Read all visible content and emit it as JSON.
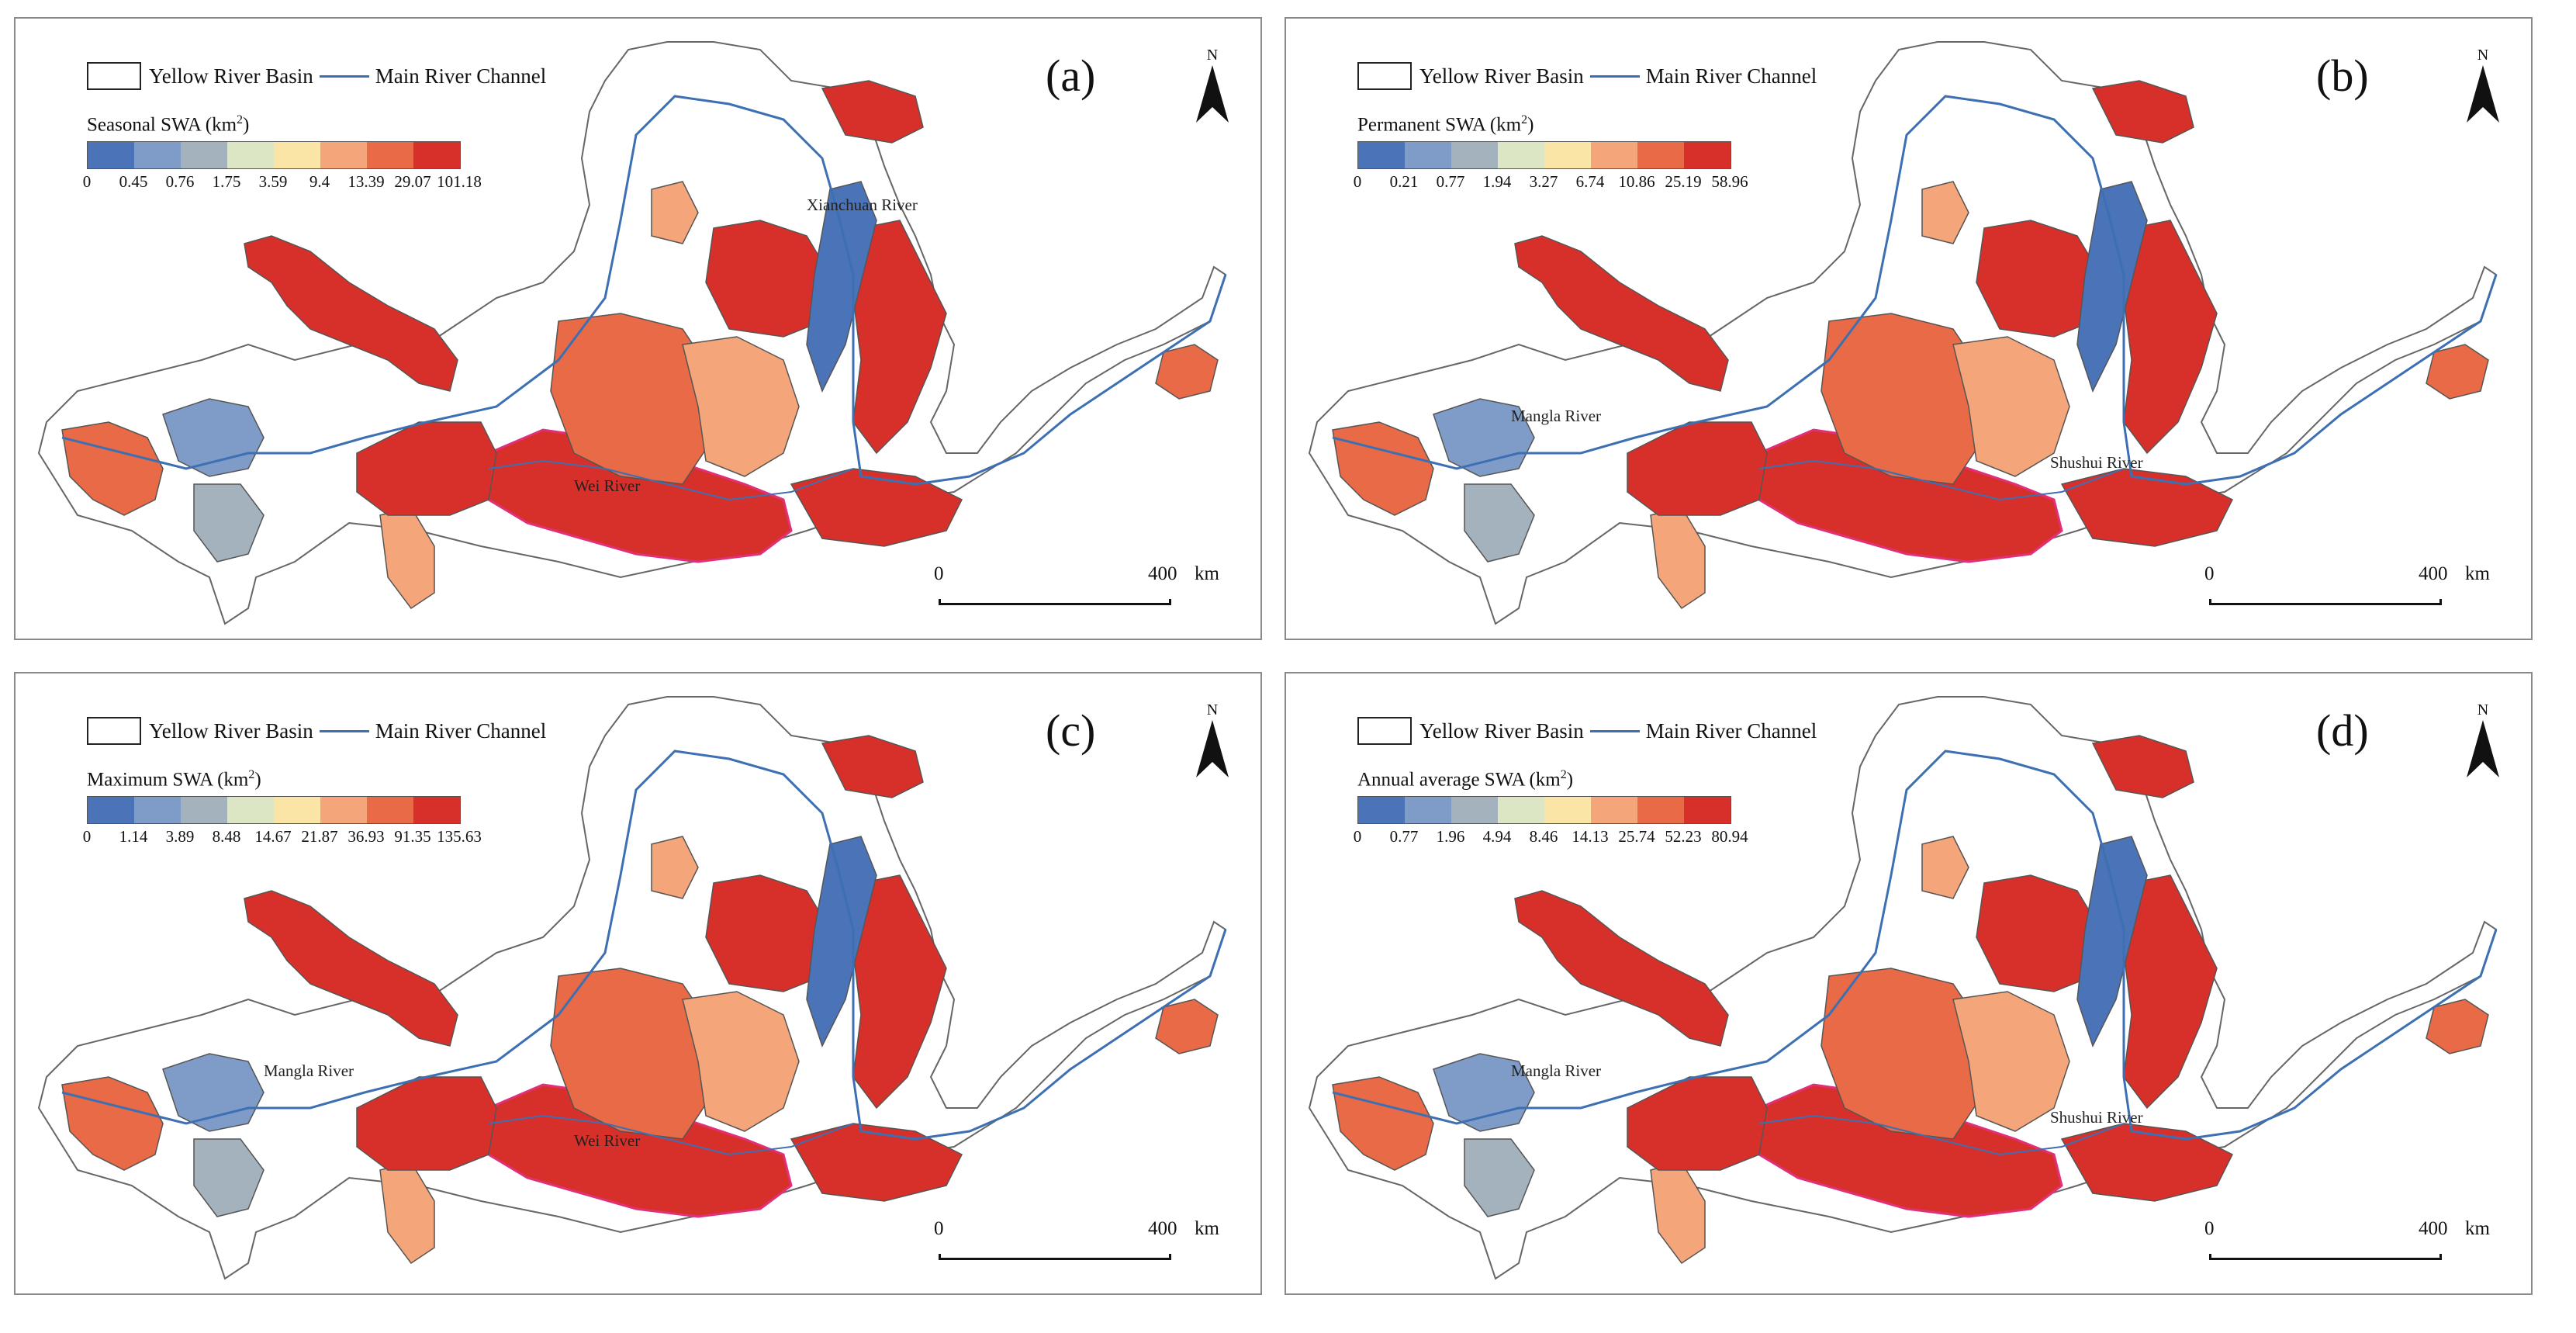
{
  "figure": {
    "legend": {
      "basin_label": "Yellow River Basin",
      "river_label": "Main River Channel",
      "colors": [
        "#4a73b8",
        "#7f9cc8",
        "#a3b2bd",
        "#dce6c4",
        "#fbe5a6",
        "#f4a67a",
        "#e86a46",
        "#d7302a"
      ]
    },
    "scale": {
      "zero": "0",
      "distance": "400",
      "unit": "km"
    },
    "north": "N",
    "panels": [
      {
        "label": "(a)",
        "legend_title": "Seasonal SWA (km",
        "legend_unit_sup": "2",
        "legend_close": ")",
        "breaks": [
          "0",
          "0.45",
          "0.76",
          "1.75",
          "3.59",
          "9.4",
          "13.39",
          "29.07",
          "101.18"
        ],
        "places": [
          "Xianchuan River",
          "Wei River"
        ]
      },
      {
        "label": "(b)",
        "legend_title": "Permanent SWA (km",
        "legend_unit_sup": "2",
        "legend_close": ")",
        "breaks": [
          "0",
          "0.21",
          "0.77",
          "1.94",
          "3.27",
          "6.74",
          "10.86",
          "25.19",
          "58.96"
        ],
        "places": [
          "Mangla River",
          "Shushui River"
        ]
      },
      {
        "label": "(c)",
        "legend_title": "Maximum SWA (km",
        "legend_unit_sup": "2",
        "legend_close": ")",
        "breaks": [
          "0",
          "1.14",
          "3.89",
          "8.48",
          "14.67",
          "21.87",
          "36.93",
          "91.35",
          "135.63"
        ],
        "places": [
          "Mangla River",
          "Wei River"
        ]
      },
      {
        "label": "(d)",
        "legend_title": "Annual average SWA (km",
        "legend_unit_sup": "2",
        "legend_close": ")",
        "breaks": [
          "0",
          "0.77",
          "1.96",
          "4.94",
          "8.46",
          "14.13",
          "25.74",
          "52.23",
          "80.94"
        ],
        "places": [
          "Mangla River",
          "Shushui River"
        ]
      }
    ]
  }
}
